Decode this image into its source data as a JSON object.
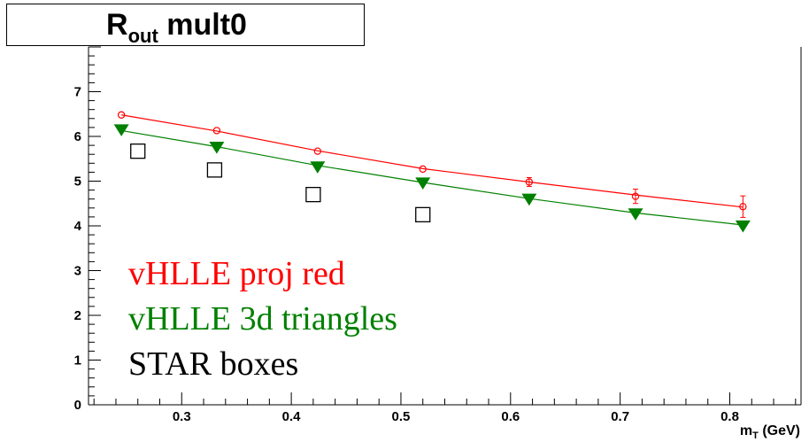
{
  "title": {
    "main": "R",
    "sub": "out",
    "rest": " mult0"
  },
  "legend_text": [
    {
      "text": "vHLLE proj red",
      "color": "#ff0000"
    },
    {
      "text": "vHLLE 3d triangles",
      "color": "#008000"
    },
    {
      "text": "STAR boxes",
      "color": "#000000"
    }
  ],
  "axis": {
    "x_label_main": "m",
    "x_label_sub": "T",
    "x_label_unit": " (GeV)"
  },
  "chart_data": {
    "type": "scatter",
    "title": "R_out mult0",
    "xlabel": "m_T (GeV)",
    "ylabel": "",
    "xlim": [
      0.215,
      0.865
    ],
    "ylim": [
      0,
      8
    ],
    "x_ticks": [
      0.3,
      0.4,
      0.5,
      0.6,
      0.7,
      0.8
    ],
    "y_ticks": [
      0,
      1,
      2,
      3,
      4,
      5,
      6,
      7
    ],
    "grid": false,
    "series": [
      {
        "name": "vHLLE proj",
        "color": "#ff0000",
        "marker": "open-circle",
        "x": [
          0.245,
          0.332,
          0.424,
          0.52,
          0.617,
          0.714,
          0.812
        ],
        "y": [
          6.48,
          6.13,
          5.67,
          5.27,
          4.98,
          4.66,
          4.43
        ],
        "err": [
          0.0,
          0.0,
          0.0,
          0.0,
          0.1,
          0.16,
          0.24
        ],
        "fit": [
          6.48,
          6.12,
          5.68,
          5.28,
          4.98,
          4.69,
          4.42
        ]
      },
      {
        "name": "vHLLE 3d",
        "color": "#008000",
        "marker": "filled-triangle-down",
        "x": [
          0.245,
          0.332,
          0.424,
          0.52,
          0.617,
          0.714,
          0.812
        ],
        "y": [
          6.17,
          5.78,
          5.34,
          4.98,
          4.62,
          4.29,
          4.02
        ],
        "fit": [
          6.13,
          5.77,
          5.35,
          4.97,
          4.61,
          4.29,
          4.02
        ]
      },
      {
        "name": "STAR",
        "color": "#000000",
        "marker": "open-square",
        "x": [
          0.26,
          0.33,
          0.42,
          0.52
        ],
        "y": [
          5.67,
          5.25,
          4.7,
          4.25
        ]
      }
    ]
  }
}
